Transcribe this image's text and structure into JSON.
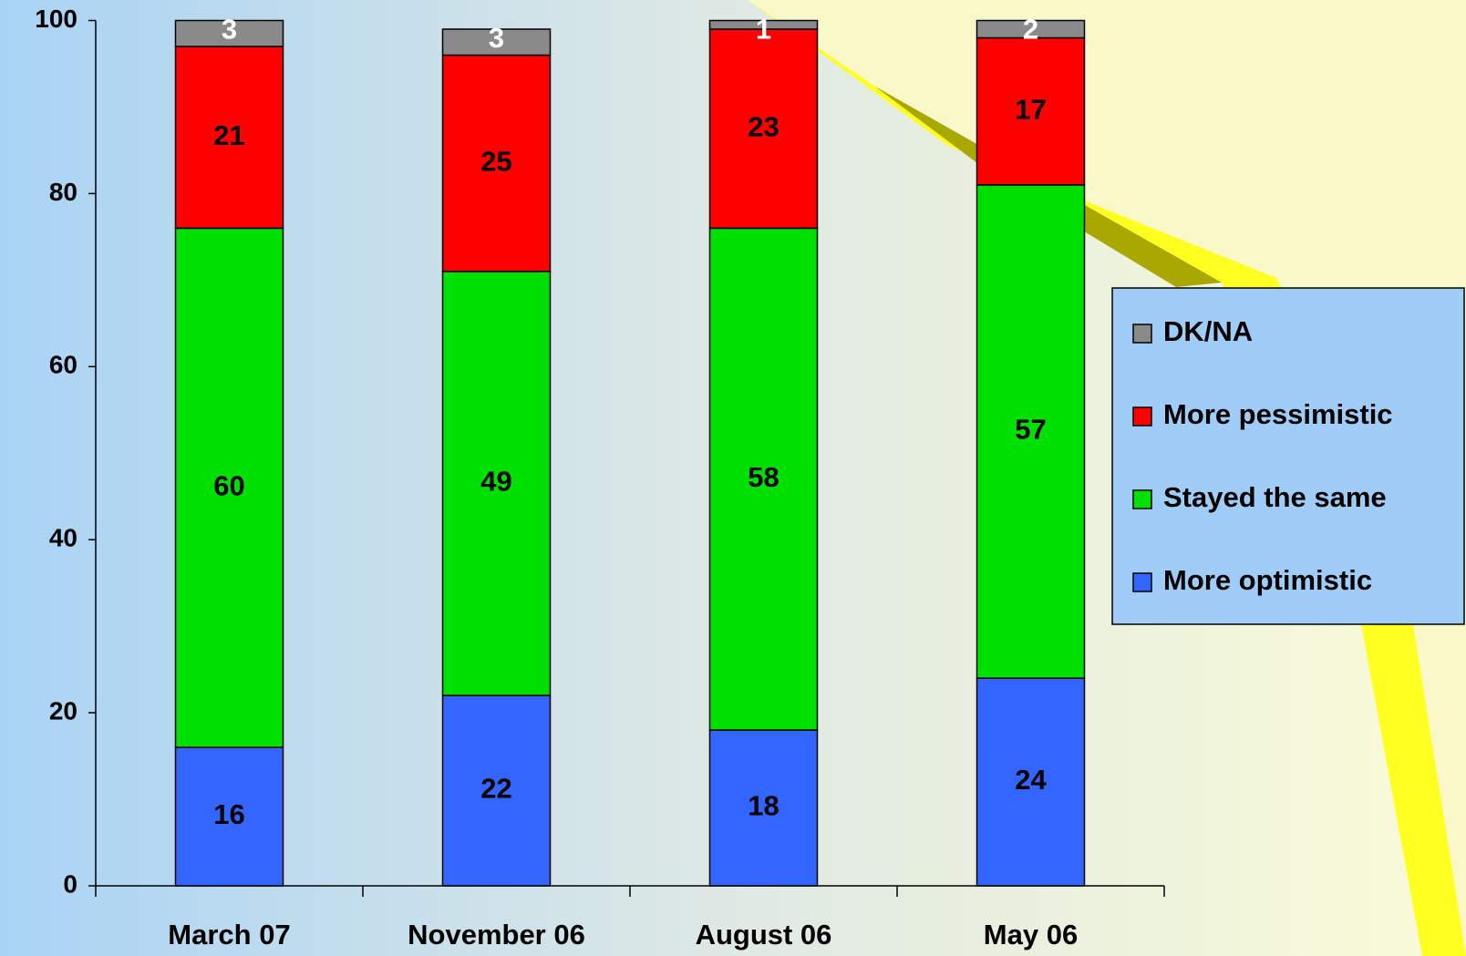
{
  "chart_data": {
    "type": "stacked-bar",
    "categories": [
      "March 07",
      "November 06",
      "August 06",
      "May 06"
    ],
    "series": [
      {
        "name": "More optimistic",
        "color": "#3366ff",
        "label_color": "#000000",
        "values": [
          16,
          22,
          18,
          24
        ]
      },
      {
        "name": "Stayed the same",
        "color": "#00e000",
        "label_color": "#000000",
        "values": [
          60,
          49,
          58,
          57
        ]
      },
      {
        "name": "More pessimistic",
        "color": "#ff0000",
        "label_color": "#000000",
        "values": [
          21,
          25,
          23,
          17
        ]
      },
      {
        "name": "DK/NA",
        "color": "#8a8a8a",
        "label_color": "#ffffff",
        "values": [
          3,
          3,
          1,
          2
        ]
      }
    ],
    "ylim": [
      0,
      100
    ],
    "yticks": [
      0,
      20,
      40,
      60,
      80,
      100
    ],
    "legend": "right"
  }
}
